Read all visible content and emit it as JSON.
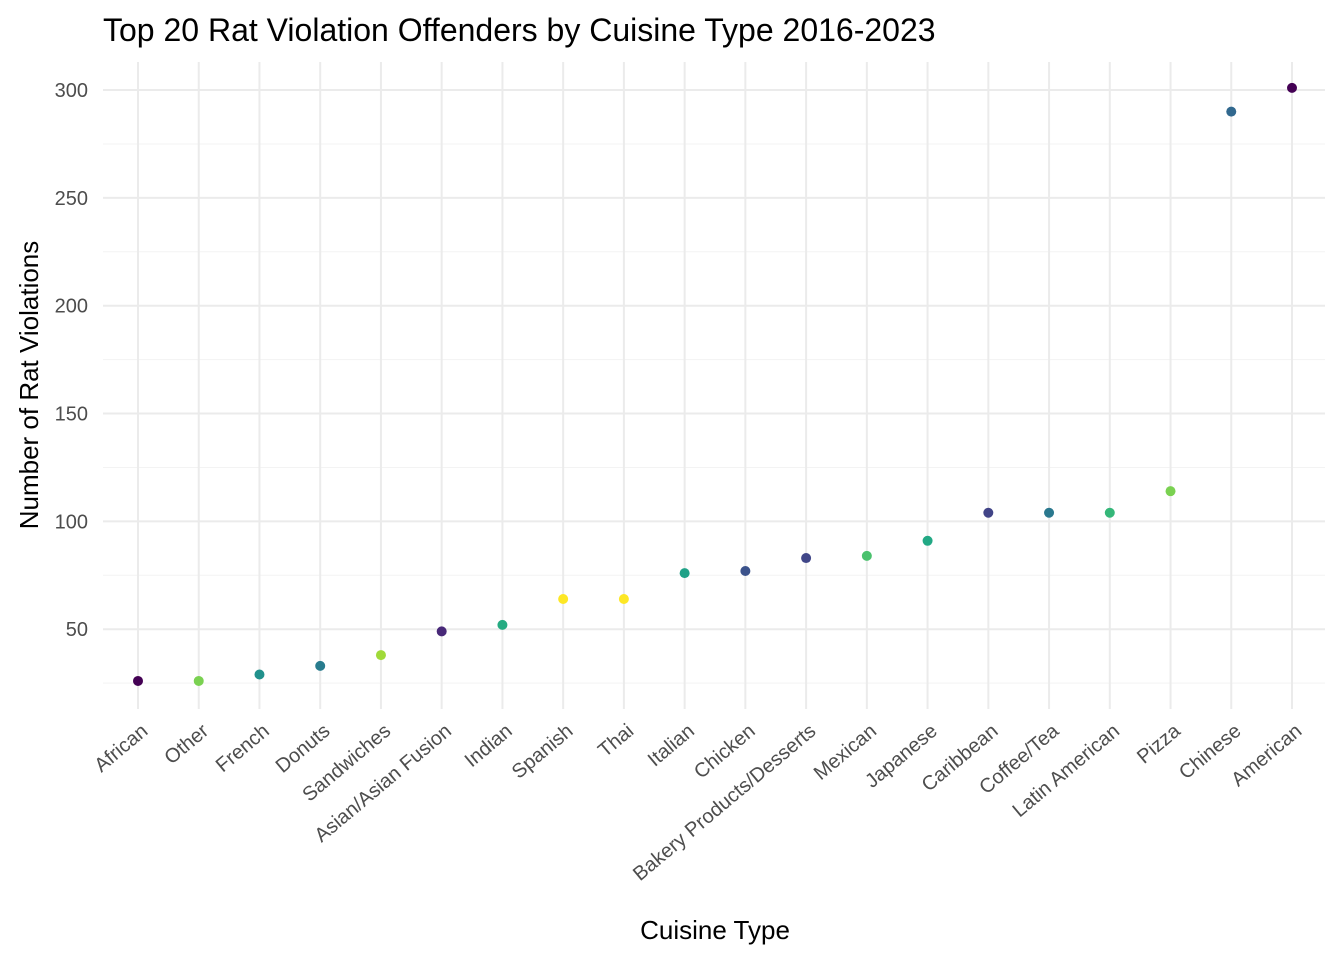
{
  "chart_data": {
    "type": "scatter",
    "title": "Top 20 Rat Violation Offenders by Cuisine Type 2016-2023",
    "xlabel": "Cuisine Type",
    "ylabel": "Number of Rat Violations",
    "ylim": [
      13,
      313
    ],
    "yticks": [
      50,
      100,
      150,
      200,
      250,
      300
    ],
    "grid": true,
    "categories": [
      "African",
      "Other",
      "French",
      "Donuts",
      "Sandwiches",
      "Asian/Asian Fusion",
      "Indian",
      "Spanish",
      "Thai",
      "Italian",
      "Chicken",
      "Bakery Products/Desserts",
      "Mexican",
      "Japanese",
      "Caribbean",
      "Coffee/Tea",
      "Latin American",
      "Pizza",
      "Chinese",
      "American"
    ],
    "values": [
      26,
      26,
      29,
      33,
      38,
      49,
      52,
      64,
      64,
      76,
      77,
      83,
      84,
      91,
      104,
      104,
      104,
      114,
      290,
      301
    ],
    "colors": [
      "#440154",
      "#7AD151",
      "#21918C",
      "#287C8E",
      "#A0DA39",
      "#482878",
      "#25AB82",
      "#FDE725",
      "#FDE725",
      "#1FA187",
      "#3B528B",
      "#404688",
      "#4AC16D",
      "#22A884",
      "#414487",
      "#2A788E",
      "#35B779",
      "#7AD151",
      "#31688E",
      "#440154"
    ]
  }
}
